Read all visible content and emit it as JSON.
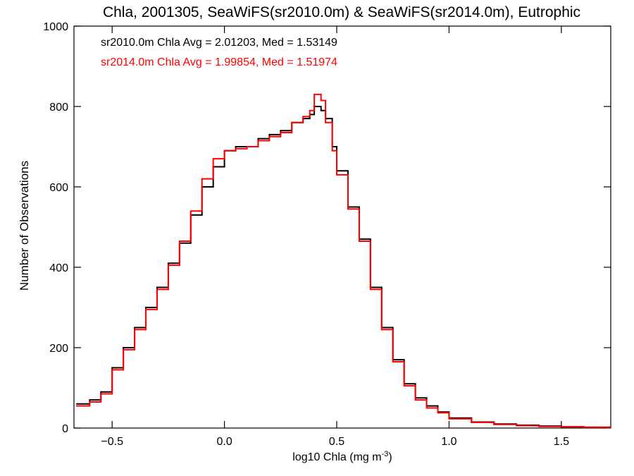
{
  "chart_data": {
    "type": "line",
    "step": true,
    "title": "Chla, 2001305, SeaWiFS(sr2010.0m) & SeaWiFS(sr2014.0m), Eutrophic",
    "xlabel": "log10 Chla (mg m",
    "xlabel_superscript": "-3",
    "xlabel_suffix": ")",
    "ylabel": "Number of Observations",
    "xlim": [
      -0.67,
      1.72
    ],
    "ylim": [
      0,
      1000
    ],
    "xticks": [
      -0.5,
      0.0,
      0.5,
      1.0,
      1.5
    ],
    "xtick_labels": [
      "−0.5",
      "0.0",
      "0.5",
      "1.0",
      "1.5"
    ],
    "yticks": [
      0,
      200,
      400,
      600,
      800,
      1000
    ],
    "ytick_labels": [
      "0",
      "200",
      "400",
      "600",
      "800",
      "1000"
    ],
    "annotations": [
      {
        "text": "sr2010.0m Chla Avg = 2.01203, Med = 1.53149",
        "color": "#000000"
      },
      {
        "text": "sr2014.0m Chla Avg = 1.99854, Med = 1.51974",
        "color": "#ff0000"
      }
    ],
    "x": [
      -0.66,
      -0.6,
      -0.55,
      -0.5,
      -0.45,
      -0.4,
      -0.35,
      -0.3,
      -0.25,
      -0.2,
      -0.15,
      -0.1,
      -0.05,
      0.0,
      0.05,
      0.1,
      0.15,
      0.2,
      0.25,
      0.3,
      0.35,
      0.38,
      0.4,
      0.43,
      0.45,
      0.48,
      0.5,
      0.55,
      0.6,
      0.65,
      0.7,
      0.75,
      0.8,
      0.85,
      0.9,
      0.95,
      1.0,
      1.1,
      1.2,
      1.3,
      1.4,
      1.5,
      1.6,
      1.7
    ],
    "series": [
      {
        "name": "sr2010.0m",
        "color": "#000000",
        "values": [
          60,
          70,
          90,
          150,
          200,
          250,
          300,
          350,
          410,
          460,
          530,
          600,
          650,
          690,
          700,
          700,
          720,
          730,
          740,
          760,
          770,
          780,
          800,
          790,
          770,
          700,
          640,
          550,
          470,
          350,
          250,
          170,
          110,
          75,
          55,
          40,
          25,
          15,
          10,
          7,
          5,
          3,
          2,
          2
        ]
      },
      {
        "name": "sr2014.0m",
        "color": "#ff0000",
        "values": [
          55,
          65,
          85,
          145,
          195,
          245,
          295,
          345,
          405,
          465,
          540,
          620,
          670,
          690,
          695,
          700,
          715,
          725,
          735,
          760,
          775,
          790,
          830,
          815,
          760,
          690,
          630,
          545,
          465,
          345,
          245,
          165,
          105,
          70,
          50,
          38,
          23,
          14,
          9,
          6,
          4,
          3,
          2,
          1
        ]
      }
    ]
  }
}
